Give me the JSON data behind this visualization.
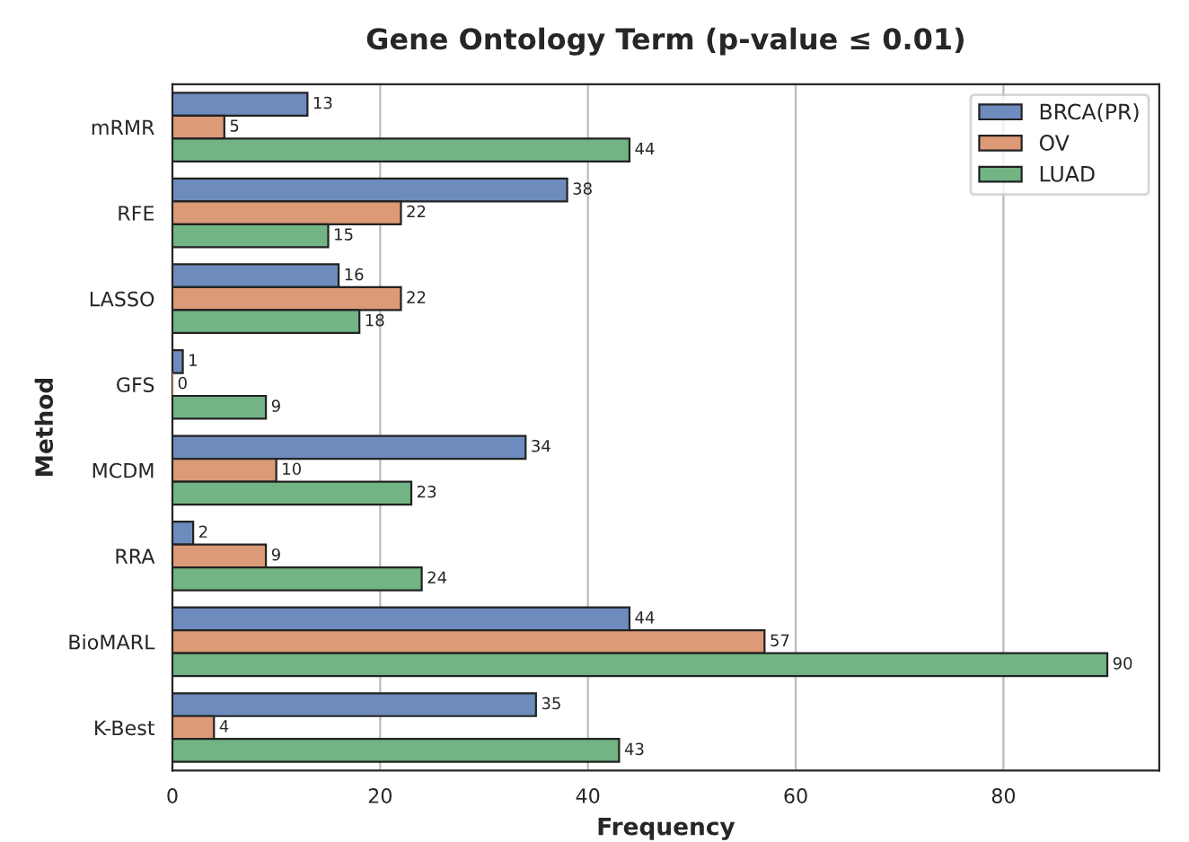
{
  "chart_data": {
    "type": "bar",
    "orientation": "horizontal",
    "title": "Gene Ontology Term (p-value ≤ 0.01)",
    "xlabel": "Frequency",
    "ylabel": "Method",
    "categories": [
      "mRMR",
      "RFE",
      "LASSO",
      "GFS",
      "MCDM",
      "RRA",
      "BioMARL",
      "K-Best"
    ],
    "series": [
      {
        "name": "BRCA(PR)",
        "color": "#6d8cbd",
        "values": [
          13,
          38,
          16,
          1,
          34,
          2,
          44,
          35
        ]
      },
      {
        "name": "OV",
        "color": "#dc9a77",
        "values": [
          5,
          22,
          22,
          0,
          10,
          9,
          57,
          4
        ]
      },
      {
        "name": "LUAD",
        "color": "#72b484",
        "values": [
          44,
          15,
          18,
          9,
          23,
          24,
          90,
          43
        ]
      }
    ],
    "xlim": [
      0,
      95
    ],
    "xticks": [
      0,
      20,
      40,
      60,
      80
    ],
    "grid": "x",
    "legend": "top right",
    "data_labels": true
  }
}
